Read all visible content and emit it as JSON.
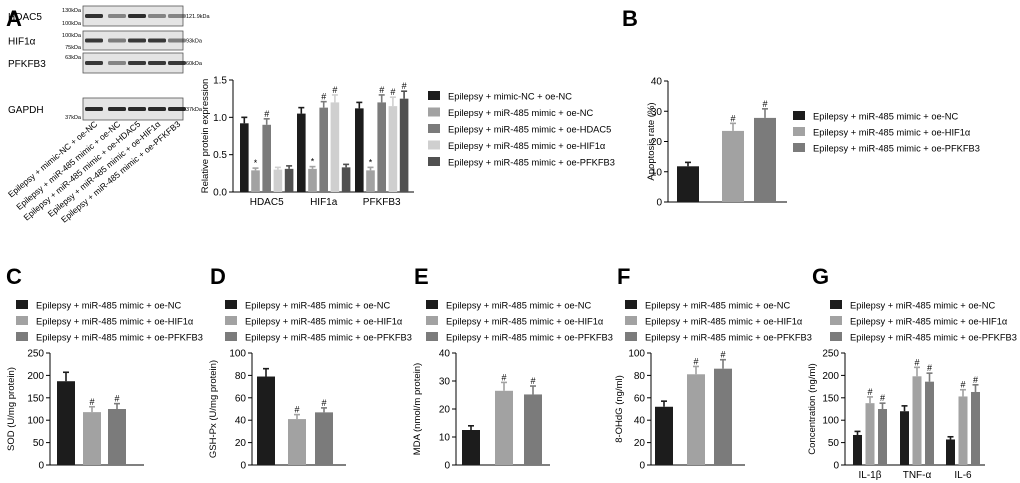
{
  "colors": {
    "s1": "#1c1c1c",
    "s2": "#a2a2a2",
    "s3": "#7b7b7b",
    "s4": "#cfcfcf",
    "s5": "#505050",
    "blot_bg": "#e4e4e4",
    "band": "#1a1a1a"
  },
  "panel_labels": {
    "A": "A",
    "B": "B",
    "C": "C",
    "D": "D",
    "E": "E",
    "F": "F",
    "G": "G"
  },
  "blot": {
    "proteins": [
      {
        "name": "HDAC5",
        "mw_top": "130kDa",
        "mw_bottom": "100kDa",
        "band_size": "121.9kDa",
        "intensities": [
          0.85,
          0.3,
          0.88,
          0.3,
          0.3
        ]
      },
      {
        "name": "HIF1α",
        "mw_top": "100kDa",
        "mw_bottom": "75kDa",
        "band_size": "93kDa",
        "intensities": [
          0.8,
          0.35,
          0.8,
          0.8,
          0.35
        ]
      },
      {
        "name": "PFKFB3",
        "mw_top": "63kDa",
        "mw_bottom": "",
        "band_size": "60kDa",
        "intensities": [
          0.8,
          0.3,
          0.8,
          0.8,
          0.8
        ]
      },
      {
        "name": "GAPDH",
        "mw_top": "",
        "mw_bottom": "37kDa",
        "band_size": "37kDa",
        "intensities": [
          0.9,
          0.9,
          0.9,
          0.9,
          0.9
        ]
      }
    ],
    "lanes": [
      "Epilepsy + mimic-NC + oe-NC",
      "Epilepsy + miR-485 mimic + oe-NC",
      "Epilepsy + miR-485 mimic + oe-HDAC5",
      "Epilepsy + miR-485 mimic + oe-HIF1α",
      "Epilepsy + miR-485 mimic + oe-PFKFB3"
    ]
  },
  "chart_data": [
    {
      "id": "A",
      "type": "bar",
      "title": "",
      "ylabel": "Relative protein expression",
      "ylim": [
        0,
        1.5
      ],
      "yticks": [
        "0.0",
        "0.5",
        "1.0",
        "1.5"
      ],
      "categories": [
        "HDAC5",
        "HIF1a",
        "PFKFB3"
      ],
      "series": [
        {
          "name": "Epilepsy + mimic-NC + oe-NC",
          "values": [
            0.92,
            1.05,
            1.12
          ],
          "errors": [
            0.08,
            0.08,
            0.08
          ],
          "marks": [
            "",
            "",
            ""
          ]
        },
        {
          "name": "Epilepsy + miR-485 mimic + oe-NC",
          "values": [
            0.29,
            0.31,
            0.29
          ],
          "errors": [
            0.03,
            0.03,
            0.04
          ],
          "marks": [
            "*",
            "*",
            "*"
          ]
        },
        {
          "name": "Epilepsy + miR-485 mimic + oe-HDAC5",
          "values": [
            0.9,
            1.13,
            1.2
          ],
          "errors": [
            0.08,
            0.08,
            0.1
          ],
          "marks": [
            "#",
            "#",
            "#"
          ]
        },
        {
          "name": "Epilepsy + miR-485 mimic + oe-HIF1α",
          "values": [
            0.3,
            1.2,
            1.15
          ],
          "errors": [
            0.03,
            0.1,
            0.12
          ],
          "marks": [
            "",
            "#",
            "#"
          ]
        },
        {
          "name": "Epilepsy + miR-485 mimic + oe-PFKFB3",
          "values": [
            0.31,
            0.33,
            1.25
          ],
          "errors": [
            0.04,
            0.04,
            0.1
          ],
          "marks": [
            "",
            "",
            "#"
          ]
        }
      ]
    },
    {
      "id": "B",
      "type": "bar",
      "ylabel": "Apoptosis rate (%)",
      "ylim": [
        0,
        40
      ],
      "yticks": [
        "0",
        "10",
        "20",
        "30",
        "40"
      ],
      "series": [
        {
          "name": "Epilepsy + miR-485 mimic + oe-NC",
          "value": 11.8,
          "error": 1.3,
          "mark": ""
        },
        {
          "name": "Epilepsy + miR-485 mimic + oe-HIF1α",
          "value": 23.5,
          "error": 2.5,
          "mark": "#"
        },
        {
          "name": "Epilepsy + miR-485 mimic + oe-PFKFB3",
          "value": 27.8,
          "error": 3.0,
          "mark": "#"
        }
      ]
    },
    {
      "id": "C",
      "type": "bar",
      "ylabel": "SOD (U/mg protein)",
      "ylim": [
        0,
        250
      ],
      "yticks": [
        "0",
        "50",
        "100",
        "150",
        "200",
        "250"
      ],
      "series": [
        {
          "name": "Epilepsy + miR-485 mimic + oe-NC",
          "value": 187,
          "error": 20,
          "mark": ""
        },
        {
          "name": "Epilepsy + miR-485 mimic + oe-HIF1α",
          "value": 118,
          "error": 12,
          "mark": "#"
        },
        {
          "name": "Epilepsy + miR-485 mimic + oe-PFKFB3",
          "value": 125,
          "error": 12,
          "mark": "#"
        }
      ]
    },
    {
      "id": "D",
      "type": "bar",
      "ylabel": "GSH-Px (U/mg protein)",
      "ylim": [
        0,
        100
      ],
      "yticks": [
        "0",
        "20",
        "40",
        "60",
        "80",
        "100"
      ],
      "series": [
        {
          "name": "Epilepsy  + miR-485 mimic + oe-NC",
          "value": 79,
          "error": 7,
          "mark": ""
        },
        {
          "name": "Epilepsy  + miR-485 mimic + oe-HIF1α",
          "value": 41,
          "error": 4,
          "mark": "#"
        },
        {
          "name": "Epilepsy  + miR-485 mimic + oe-PFKFB3",
          "value": 47,
          "error": 4,
          "mark": "#"
        }
      ]
    },
    {
      "id": "E",
      "type": "bar",
      "ylabel": "MDA (nmol/m protein)",
      "ylim": [
        0,
        40
      ],
      "yticks": [
        "0",
        "10",
        "20",
        "30",
        "40"
      ],
      "series": [
        {
          "name": "Epilepsy + miR-485 mimic + oe-NC",
          "value": 12.5,
          "error": 1.5,
          "mark": ""
        },
        {
          "name": "Epilepsy + miR-485 mimic + oe-HIF1α",
          "value": 26.5,
          "error": 3,
          "mark": "#"
        },
        {
          "name": "Epilepsy + miR-485 mimic + oe-PFKFB3",
          "value": 25.2,
          "error": 3,
          "mark": "#"
        }
      ]
    },
    {
      "id": "F",
      "type": "bar",
      "ylabel": "8-OHdG (ng/ml)",
      "ylim": [
        0,
        100
      ],
      "yticks": [
        "0",
        "20",
        "40",
        "60",
        "80",
        "100"
      ],
      "series": [
        {
          "name": "Epilepsy + miR-485 mimic + oe-NC",
          "value": 52,
          "error": 5,
          "mark": ""
        },
        {
          "name": "Epilepsy + miR-485 mimic + oe-HIF1α",
          "value": 81,
          "error": 7,
          "mark": "#"
        },
        {
          "name": "Epilepsy + miR-485 mimic + oe-PFKFB3",
          "value": 86,
          "error": 8,
          "mark": "#"
        }
      ]
    },
    {
      "id": "G",
      "type": "bar",
      "ylabel": "Concentration (ng/ml)",
      "ylim": [
        0,
        250
      ],
      "yticks": [
        "0",
        "50",
        "100",
        "150",
        "200",
        "250"
      ],
      "categories": [
        "IL-1β",
        "TNF-α",
        "IL-6"
      ],
      "series": [
        {
          "name": "Epilepsy + miR-485 mimic + oe-NC",
          "values": [
            67,
            120,
            57
          ],
          "errors": [
            8,
            12,
            6
          ],
          "marks": [
            "",
            "",
            ""
          ]
        },
        {
          "name": "Epilepsy + miR-485 mimic + oe-HIF1α",
          "values": [
            138,
            198,
            153
          ],
          "errors": [
            14,
            20,
            15
          ],
          "marks": [
            "#",
            "#",
            "#"
          ]
        },
        {
          "name": "Epilepsy + miR-485 mimic + oe-PFKFB3",
          "values": [
            125,
            186,
            163
          ],
          "errors": [
            13,
            19,
            16
          ],
          "marks": [
            "#",
            "#",
            "#"
          ]
        }
      ]
    }
  ]
}
